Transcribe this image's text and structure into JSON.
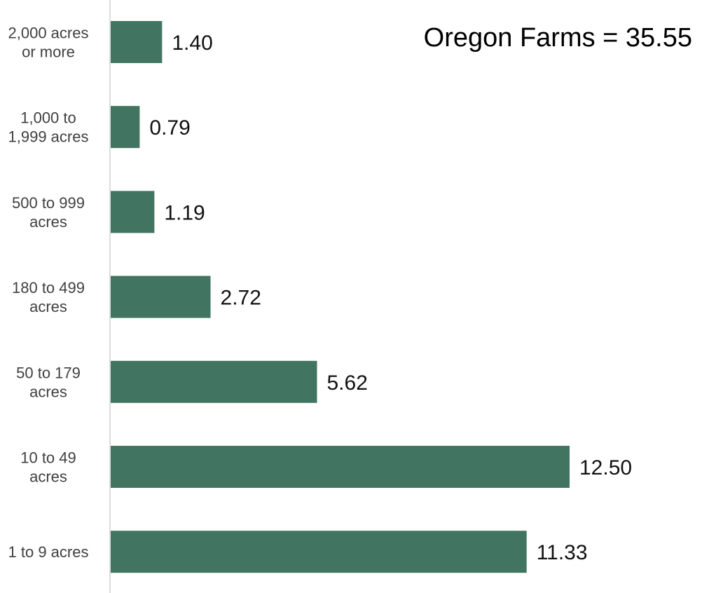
{
  "chart_data": {
    "type": "bar",
    "orientation": "horizontal",
    "title": "Oregon Farms = 35.55",
    "categories": [
      [
        "2,000 acres",
        "or more"
      ],
      [
        "1,000 to",
        "1,999 acres"
      ],
      [
        "500 to 999",
        "acres"
      ],
      [
        "180 to 499",
        "acres"
      ],
      [
        "50 to 179",
        "acres"
      ],
      [
        "10 to 49",
        "acres"
      ],
      [
        "1 to 9 acres"
      ]
    ],
    "values": [
      1.4,
      0.79,
      1.19,
      2.72,
      5.62,
      12.5,
      11.33
    ],
    "value_labels": [
      "1.40",
      "0.79",
      "1.19",
      "2.72",
      "5.62",
      "12.50",
      "11.33"
    ],
    "xlim": [
      0,
      16
    ],
    "grid": false,
    "legend": "none",
    "bar_color": "#427561",
    "axis_color": "#d0d0d0"
  }
}
